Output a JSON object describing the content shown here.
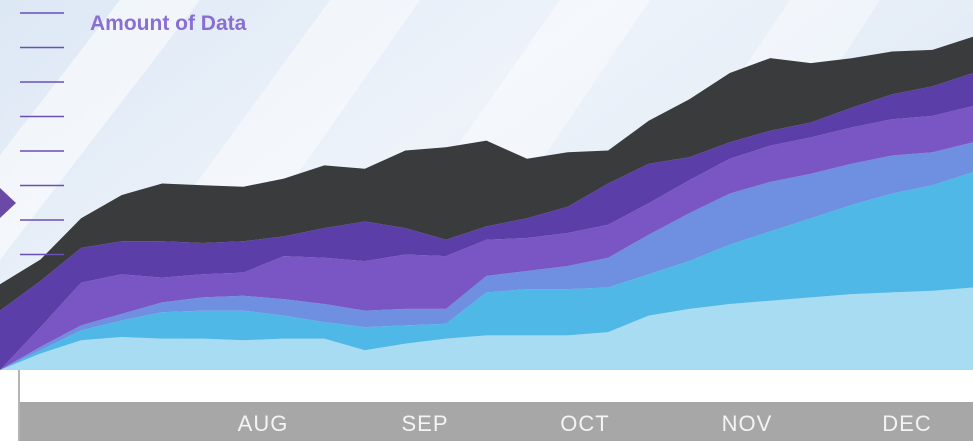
{
  "chart_data": {
    "type": "area",
    "stacked": true,
    "title": "Amount of Data",
    "categories": [
      "AUG",
      "SEP",
      "OCT",
      "NOV",
      "DEC"
    ],
    "x": [
      0,
      0.5,
      1,
      1.5,
      2,
      2.5,
      3,
      3.5,
      4,
      4.5,
      5,
      5.5,
      6,
      6.5,
      7,
      7.5,
      8,
      8.5,
      9,
      9.5,
      10,
      10.5,
      11,
      11.5,
      12
    ],
    "ylim": [
      0,
      10
    ],
    "series": [
      {
        "color": "#a8dcf2",
        "values": [
          0,
          0.5,
          0.9,
          1.0,
          0.95,
          0.95,
          0.9,
          0.95,
          0.95,
          0.6,
          0.8,
          0.95,
          1.05,
          1.05,
          1.05,
          1.15,
          1.65,
          1.85,
          2.0,
          2.1,
          2.2,
          2.3,
          2.35,
          2.4,
          2.5
        ]
      },
      {
        "color": "#4fb8e6",
        "values": [
          0,
          0.1,
          0.3,
          0.5,
          0.8,
          0.85,
          0.9,
          0.7,
          0.5,
          0.7,
          0.55,
          0.45,
          1.3,
          1.4,
          1.4,
          1.35,
          1.25,
          1.45,
          1.8,
          2.1,
          2.4,
          2.7,
          3.0,
          3.2,
          3.5
        ]
      },
      {
        "color": "#6f8fe0",
        "values": [
          0,
          0.1,
          0.15,
          0.2,
          0.3,
          0.4,
          0.45,
          0.5,
          0.55,
          0.5,
          0.5,
          0.45,
          0.5,
          0.55,
          0.7,
          0.9,
          1.2,
          1.45,
          1.55,
          1.5,
          1.35,
          1.25,
          1.15,
          1.0,
          0.9
        ]
      },
      {
        "color": "#7a55c4",
        "values": [
          0,
          0.6,
          1.3,
          1.2,
          0.75,
          0.7,
          0.7,
          1.3,
          1.4,
          1.5,
          1.65,
          1.6,
          1.1,
          1.0,
          1.0,
          1.0,
          0.95,
          1.0,
          1.05,
          1.1,
          1.1,
          1.1,
          1.1,
          1.1,
          1.1
        ]
      },
      {
        "color": "#5b3ea8",
        "values": [
          1.8,
          1.4,
          1.05,
          1.0,
          1.1,
          0.95,
          0.95,
          0.6,
          0.9,
          1.2,
          0.8,
          0.5,
          0.4,
          0.6,
          0.8,
          1.25,
          1.2,
          0.7,
          0.5,
          0.45,
          0.45,
          0.6,
          0.75,
          0.9,
          1.0
        ]
      },
      {
        "color": "#393b3c",
        "values": [
          0.8,
          0.65,
          0.9,
          1.4,
          1.75,
          1.75,
          1.65,
          1.75,
          1.9,
          1.6,
          2.35,
          2.8,
          2.6,
          1.8,
          1.65,
          1.0,
          1.3,
          1.75,
          2.1,
          2.2,
          1.8,
          1.5,
          1.3,
          1.1,
          1.1
        ]
      }
    ]
  },
  "colors": {
    "band": "#a7a7a7",
    "month_text": "#f4f4f4",
    "axis_tick": "#6a4fb6",
    "title": "#8a6fd2",
    "arrow": "#6a4aa6"
  }
}
